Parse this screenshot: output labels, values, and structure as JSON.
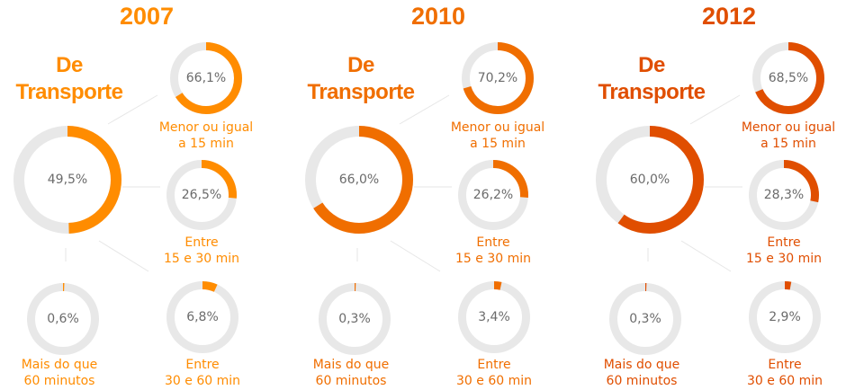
{
  "colors": {
    "2007": "#FF8C00",
    "2010": "#F06E00",
    "2012": "#E04E00",
    "track": "#E8E8E8",
    "value_text": "#6B6B6B",
    "connector": "#E6E6E6"
  },
  "panels": [
    {
      "year": "2007",
      "category_line1": "De",
      "category_line2": "Transporte",
      "main": {
        "value": 49.5,
        "label": "49,5%"
      },
      "le15": {
        "value": 66.1,
        "label": "66,1%",
        "caption1": "Menor ou igual",
        "caption2": "a 15 min"
      },
      "b15_30": {
        "value": 26.5,
        "label": "26,5%",
        "caption1": "Entre",
        "caption2": "15 e 30 min"
      },
      "gt60": {
        "value": 0.6,
        "label": "0,6%",
        "caption1": "Mais do que",
        "caption2": "60 minutos"
      },
      "b30_60": {
        "value": 6.8,
        "label": "6,8%",
        "caption1": "Entre",
        "caption2": "30 e 60 min"
      }
    },
    {
      "year": "2010",
      "category_line1": "De",
      "category_line2": "Transporte",
      "main": {
        "value": 66.0,
        "label": "66,0%"
      },
      "le15": {
        "value": 70.2,
        "label": "70,2%",
        "caption1": "Menor ou igual",
        "caption2": "a 15 min"
      },
      "b15_30": {
        "value": 26.2,
        "label": "26,2%",
        "caption1": "Entre",
        "caption2": "15 e 30 min"
      },
      "gt60": {
        "value": 0.3,
        "label": "0,3%",
        "caption1": "Mais do que",
        "caption2": "60 minutos"
      },
      "b30_60": {
        "value": 3.4,
        "label": "3,4%",
        "caption1": "Entre",
        "caption2": "30 e 60 min"
      }
    },
    {
      "year": "2012",
      "category_line1": "De",
      "category_line2": "Transporte",
      "main": {
        "value": 60.0,
        "label": "60,0%"
      },
      "le15": {
        "value": 68.5,
        "label": "68,5%",
        "caption1": "Menor ou igual",
        "caption2": "a 15 min"
      },
      "b15_30": {
        "value": 28.3,
        "label": "28,3%",
        "caption1": "Entre",
        "caption2": "15 e 30 min"
      },
      "gt60": {
        "value": 0.3,
        "label": "0,3%",
        "caption1": "Mais do que",
        "caption2": "60 minutos"
      },
      "b30_60": {
        "value": 2.9,
        "label": "2,9%",
        "caption1": "Entre",
        "caption2": "30 e 60 min"
      }
    }
  ],
  "chart_data": [
    {
      "type": "pie",
      "title": "2007",
      "subtitle": "De Transporte",
      "categories": [
        "De Transporte (total)",
        "Menor ou igual a 15 min",
        "Entre 15 e 30 min",
        "Entre 30 e 60 min",
        "Mais do que 60 minutos"
      ],
      "values": [
        49.5,
        66.1,
        26.5,
        6.8,
        0.6
      ],
      "unit": "%"
    },
    {
      "type": "pie",
      "title": "2010",
      "subtitle": "De Transporte",
      "categories": [
        "De Transporte (total)",
        "Menor ou igual a 15 min",
        "Entre 15 e 30 min",
        "Entre 30 e 60 min",
        "Mais do que 60 minutos"
      ],
      "values": [
        66.0,
        70.2,
        26.2,
        3.4,
        0.3
      ],
      "unit": "%"
    },
    {
      "type": "pie",
      "title": "2012",
      "subtitle": "De Transporte",
      "categories": [
        "De Transporte (total)",
        "Menor ou igual a 15 min",
        "Entre 15 e 30 min",
        "Entre 30 e 60 min",
        "Mais do que 60 minutos"
      ],
      "values": [
        60.0,
        68.5,
        28.3,
        2.9,
        0.3
      ],
      "unit": "%"
    }
  ]
}
